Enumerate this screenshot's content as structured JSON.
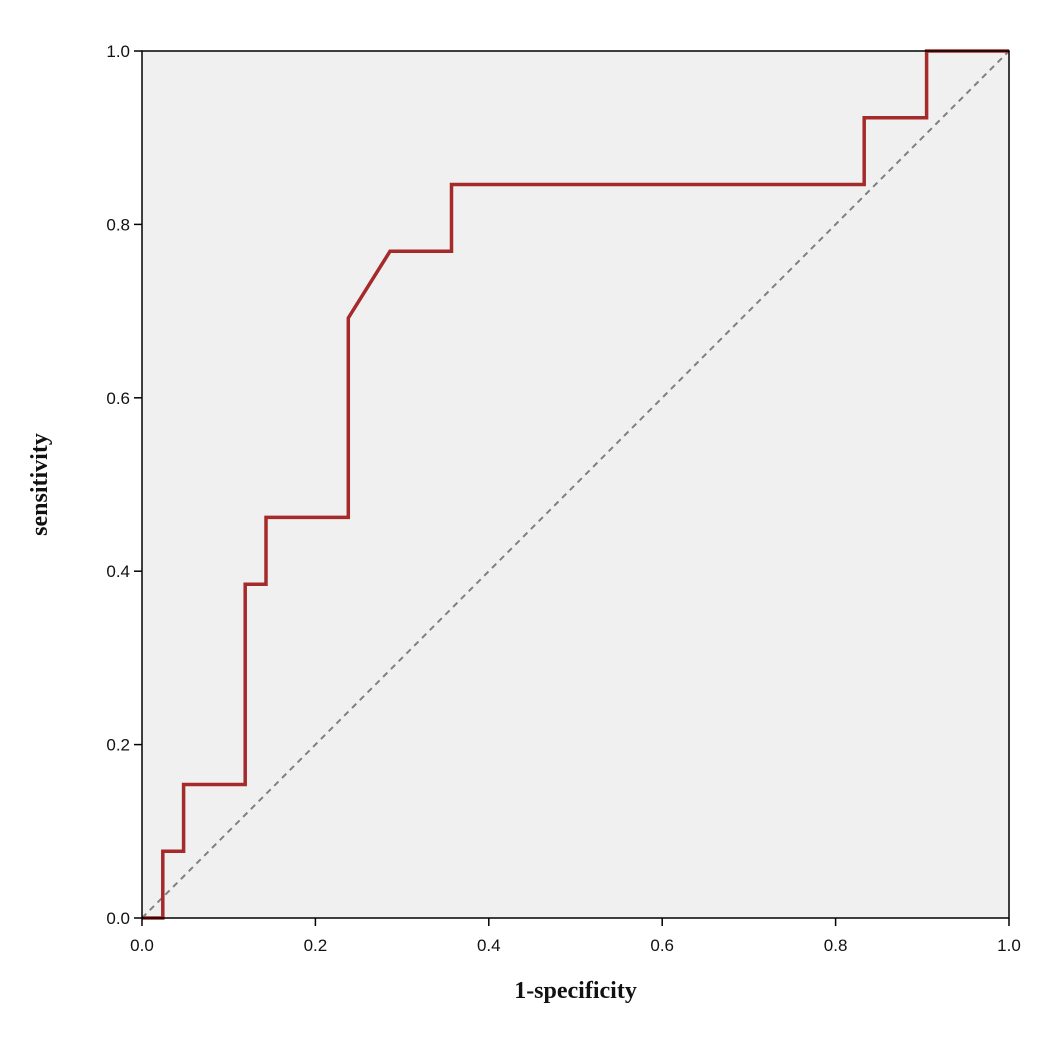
{
  "chart_data": {
    "type": "line",
    "title": "",
    "xlabel": "1-specificity",
    "ylabel": "sensitivity",
    "xlim": [
      0,
      1
    ],
    "ylim": [
      0,
      1
    ],
    "x_ticks": [
      "0.0",
      "0.2",
      "0.4",
      "0.6",
      "0.8",
      "1.0"
    ],
    "y_ticks": [
      "0.0",
      "0.2",
      "0.4",
      "0.6",
      "0.8",
      "1.0"
    ],
    "grid": false,
    "legend": "none",
    "series": [
      {
        "color": "#a52a2a",
        "x": [
          0,
          0.024,
          0.024,
          0.048,
          0.048,
          0.119,
          0.119,
          0.143,
          0.143,
          0.238,
          0.238,
          0.286,
          0.357,
          0.357,
          0.833,
          0.833,
          0.905,
          0.905,
          1.0
        ],
        "y": [
          0,
          0,
          0.077,
          0.077,
          0.154,
          0.154,
          0.385,
          0.385,
          0.462,
          0.462,
          0.692,
          0.769,
          0.769,
          0.846,
          0.846,
          0.923,
          0.923,
          1.0,
          1.0
        ]
      },
      {
        "color": "#808080",
        "dashed": true,
        "x": [
          0,
          1
        ],
        "y": [
          0,
          1
        ]
      }
    ],
    "plot_background": "#f0f0f0"
  }
}
